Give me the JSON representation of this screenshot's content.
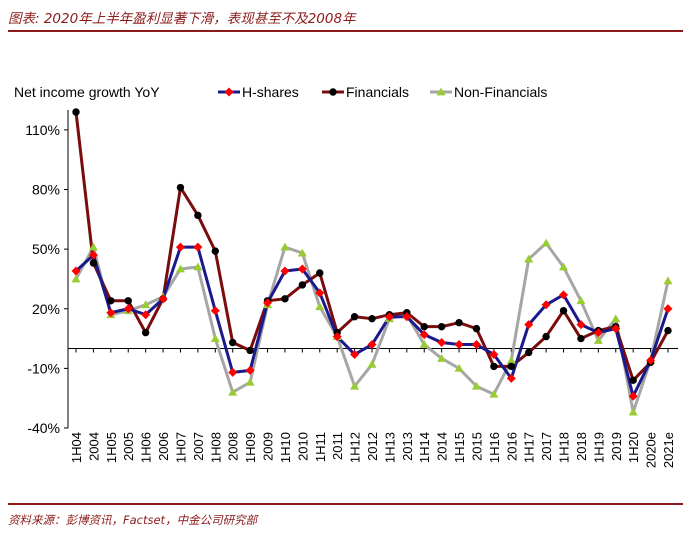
{
  "header": {
    "title": "图表: 2020年上半年盈利显著下滑，表现甚至不及2008年"
  },
  "footer": {
    "source": "资料来源：彭博资讯，Factset，中金公司研究部"
  },
  "chart_data": {
    "type": "line",
    "ylabel": "Net income growth YoY",
    "ylim": [
      -40,
      120
    ],
    "yticks": [
      -40,
      -10,
      20,
      50,
      80,
      110
    ],
    "ytick_labels": [
      "-40%",
      "-10%",
      "20%",
      "50%",
      "80%",
      "110%"
    ],
    "categories": [
      "1H04",
      "2004",
      "1H05",
      "2005",
      "1H06",
      "2006",
      "1H07",
      "2007",
      "1H08",
      "2008",
      "1H09",
      "2009",
      "1H10",
      "2010",
      "1H11",
      "2011",
      "1H12",
      "2012",
      "1H13",
      "2013",
      "1H14",
      "2014",
      "1H15",
      "2015",
      "1H16",
      "2016",
      "1H17",
      "2017",
      "1H18",
      "2018",
      "1H19",
      "2019",
      "1H20",
      "2020e",
      "2021e"
    ],
    "series": [
      {
        "name": "H-shares",
        "color": "#1a1a8c",
        "marker": "diamond",
        "marker_color": "#ff0000",
        "values": [
          39,
          47,
          18,
          20,
          17,
          25,
          51,
          51,
          19,
          -12,
          -11,
          23,
          39,
          40,
          28,
          6,
          -3,
          2,
          16,
          16,
          7,
          3,
          2,
          2,
          -3,
          -15,
          12,
          22,
          27,
          12,
          8,
          10,
          -24,
          -6,
          20
        ]
      },
      {
        "name": "Financials",
        "color": "#7a0c0c",
        "marker": "circle",
        "marker_color": "#000000",
        "values": [
          119,
          43,
          24,
          24,
          8,
          25,
          81,
          67,
          49,
          3,
          -1,
          24,
          25,
          32,
          38,
          8,
          16,
          15,
          17,
          18,
          11,
          11,
          13,
          10,
          -9,
          -9,
          -2,
          6,
          19,
          5,
          9,
          11,
          -16,
          -7,
          9
        ]
      },
      {
        "name": "Non-Financials",
        "color": "#a6a6a6",
        "marker": "triangle",
        "marker_color": "#99cc33",
        "values": [
          35,
          51,
          17,
          19,
          22,
          26,
          40,
          41,
          5,
          -22,
          -17,
          22,
          51,
          48,
          21,
          6,
          -19,
          -8,
          15,
          17,
          2,
          -5,
          -10,
          -19,
          -23,
          -6,
          45,
          53,
          41,
          24,
          4,
          15,
          -32,
          -6,
          34
        ]
      }
    ],
    "legend_position": "top"
  }
}
